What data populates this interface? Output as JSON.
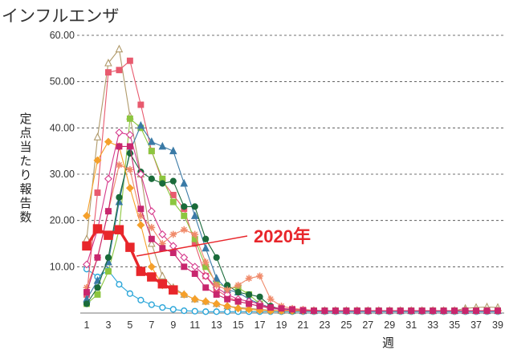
{
  "chart_data": {
    "type": "line",
    "title": "インフルエンザ",
    "ylabel": "定点当たり報告数",
    "xlabel": "週",
    "ylim": [
      0,
      60
    ],
    "xlim": [
      1,
      39
    ],
    "y_ticks": [
      "10.00",
      "20.00",
      "30.00",
      "40.00",
      "50.00",
      "60.00"
    ],
    "x_ticks": [
      1,
      3,
      5,
      7,
      9,
      11,
      13,
      15,
      17,
      19,
      21,
      23,
      25,
      27,
      29,
      31,
      33,
      35,
      37,
      39
    ],
    "grid": "horizontal-dashed",
    "annotation": "2020年",
    "highlight_series": "2020年",
    "series": [
      {
        "name": "2020年",
        "color": "#e8262b",
        "marker": "square",
        "x": [
          1,
          2,
          3,
          4,
          5,
          6,
          7,
          8,
          9
        ],
        "y": [
          14.5,
          18.2,
          16.8,
          18.0,
          14.2,
          9.0,
          7.8,
          6.3,
          5.0
        ]
      },
      {
        "color": "#2ba6d9",
        "marker": "circle-open",
        "x": [
          1,
          2,
          3,
          4,
          5,
          6,
          7,
          8,
          9,
          10,
          11,
          12,
          13,
          14,
          15,
          16,
          17,
          18,
          19,
          20,
          21,
          22,
          23,
          24,
          25,
          26,
          27,
          28,
          29,
          30,
          31,
          32,
          33,
          34,
          35,
          36,
          37,
          38,
          39
        ],
        "y": [
          9.5,
          7.8,
          9.2,
          6.2,
          4.2,
          2.8,
          1.8,
          1.2,
          0.8,
          0.5,
          0.4,
          0.3,
          0.3,
          0.3,
          0.3,
          0.3,
          0.3,
          0.3,
          0.3,
          0.3,
          0.3,
          0.3,
          0.3,
          0.3,
          0.3,
          0.3,
          0.3,
          0.3,
          0.3,
          0.3,
          0.3,
          0.3,
          0.3,
          0.3,
          0.3,
          0.3,
          0.3,
          0.3,
          0.3
        ]
      },
      {
        "color": "#b09a6a",
        "marker": "triangle-open",
        "x": [
          1,
          2,
          3,
          4,
          5,
          6,
          7,
          8,
          9,
          10,
          11,
          12,
          13,
          14,
          15,
          16,
          17,
          18,
          19,
          20,
          21,
          22,
          23,
          24,
          25,
          26,
          27,
          28,
          29,
          30,
          31,
          32,
          33,
          34,
          35,
          36,
          37,
          38,
          39
        ],
        "y": [
          16.0,
          38.0,
          54.0,
          57.0,
          42.5,
          30.0,
          15.0,
          8.0,
          5.5,
          4.0,
          3.0,
          2.5,
          2.0,
          1.5,
          1.2,
          1.0,
          0.8,
          0.6,
          0.5,
          0.5,
          0.5,
          0.5,
          0.5,
          0.5,
          0.5,
          0.5,
          0.5,
          0.5,
          0.5,
          0.5,
          0.5,
          0.5,
          0.5,
          0.5,
          0.5,
          1.0,
          1.2,
          1.3,
          1.2
        ]
      },
      {
        "color": "#e85a6e",
        "marker": "square",
        "x": [
          1,
          2,
          3,
          4,
          5,
          6,
          7,
          8,
          9,
          10,
          11,
          12,
          13,
          14,
          15,
          16,
          17,
          18,
          19,
          20,
          21,
          22,
          23,
          24,
          25,
          26,
          27,
          28,
          29,
          30,
          31,
          32,
          33,
          34,
          35,
          36,
          37,
          38,
          39
        ],
        "y": [
          4.0,
          26.0,
          52.0,
          52.5,
          54.5,
          45.0,
          35.0,
          28.5,
          25.5,
          22.5,
          15.0,
          8.0,
          5.0,
          3.5,
          2.5,
          2.0,
          1.5,
          1.0,
          0.8,
          0.6,
          0.5,
          0.5,
          0.5,
          0.5,
          0.5,
          0.5,
          0.5,
          0.5,
          0.5,
          0.5,
          0.5,
          0.5,
          0.5,
          0.5,
          0.5,
          0.5,
          0.5,
          0.5,
          0.5
        ]
      },
      {
        "color": "#8cc63f",
        "marker": "square",
        "x": [
          1,
          2,
          3,
          4,
          5,
          6,
          7,
          8,
          9,
          10,
          11,
          12,
          13,
          14,
          15,
          16,
          17,
          18,
          19,
          20,
          21,
          22,
          23,
          24,
          25,
          26,
          27,
          28,
          29,
          30,
          31,
          32,
          33,
          34,
          35,
          36,
          37,
          38,
          39
        ],
        "y": [
          2.0,
          4.0,
          9.0,
          18.0,
          42.0,
          40.0,
          35.0,
          29.0,
          24.0,
          21.0,
          16.0,
          10.0,
          6.5,
          5.5,
          5.5,
          4.0,
          2.0,
          1.0,
          0.8,
          0.5,
          0.5,
          0.5,
          0.5,
          0.5,
          0.5,
          0.5,
          0.5,
          0.5,
          0.5,
          0.5,
          0.5,
          0.5,
          0.5,
          0.5,
          0.5,
          0.5,
          0.5,
          0.5,
          0.5
        ]
      },
      {
        "color": "#3a7aa6",
        "marker": "triangle",
        "x": [
          1,
          2,
          3,
          4,
          5,
          6,
          7,
          8,
          9,
          10,
          11,
          12,
          13,
          14,
          15,
          16,
          17,
          18,
          19,
          20,
          21,
          22,
          23,
          24,
          25,
          26,
          27,
          28,
          29,
          30,
          31,
          32,
          33,
          34,
          35,
          36,
          37,
          38,
          39
        ],
        "y": [
          3.0,
          7.0,
          11.0,
          24.0,
          35.0,
          40.5,
          37.0,
          36.0,
          35.0,
          28.0,
          21.0,
          14.0,
          7.5,
          5.0,
          4.5,
          3.0,
          2.0,
          1.2,
          0.8,
          0.6,
          0.5,
          0.5,
          0.5,
          0.5,
          0.5,
          0.5,
          0.5,
          0.5,
          0.5,
          0.5,
          0.5,
          0.5,
          0.5,
          0.5,
          0.5,
          0.5,
          0.5,
          0.5,
          0.5
        ]
      },
      {
        "color": "#1a6b3a",
        "marker": "circle",
        "x": [
          1,
          2,
          3,
          4,
          5,
          6,
          7,
          8,
          9,
          10,
          11,
          12,
          13,
          14,
          15,
          16,
          17,
          18,
          19,
          20,
          21,
          22,
          23,
          24,
          25,
          26,
          27,
          28,
          29,
          30,
          31,
          32,
          33,
          34,
          35,
          36,
          37,
          38,
          39
        ],
        "y": [
          2.0,
          5.5,
          12.0,
          25.0,
          34.5,
          30.5,
          29.0,
          28.0,
          28.5,
          23.0,
          23.0,
          16.0,
          12.0,
          6.0,
          4.5,
          4.0,
          3.5,
          1.5,
          0.8,
          0.5,
          0.5,
          0.5,
          0.5,
          0.5,
          0.5,
          0.5,
          0.5,
          0.5,
          0.5,
          0.5,
          0.5,
          0.5,
          0.5,
          0.5,
          0.5,
          0.5,
          0.5,
          0.5,
          0.5
        ]
      },
      {
        "color": "#d63a8c",
        "marker": "diamond-open",
        "x": [
          1,
          2,
          3,
          4,
          5,
          6,
          7,
          8,
          9,
          10,
          11,
          12,
          13,
          14,
          15,
          16,
          17,
          18,
          19,
          20,
          21,
          22,
          23,
          24,
          25,
          26,
          27,
          28,
          29,
          30,
          31,
          32,
          33,
          34,
          35,
          36,
          37,
          38,
          39
        ],
        "y": [
          10.5,
          18.0,
          29.0,
          39.0,
          38.5,
          30.0,
          22.0,
          17.0,
          14.5,
          12.0,
          10.0,
          8.0,
          5.5,
          4.0,
          3.0,
          2.5,
          2.0,
          1.0,
          0.8,
          0.5,
          0.5,
          0.5,
          0.5,
          0.5,
          0.5,
          0.5,
          0.5,
          0.5,
          0.5,
          0.5,
          0.5,
          0.5,
          0.5,
          0.5,
          0.5,
          0.5,
          0.5,
          0.5,
          0.5
        ]
      },
      {
        "color": "#f5a02a",
        "marker": "diamond",
        "x": [
          1,
          2,
          3,
          4,
          5,
          6,
          7,
          8,
          9,
          10,
          11,
          12,
          13,
          14,
          15,
          16,
          17,
          18,
          19,
          20,
          21,
          22,
          23,
          24,
          25,
          26,
          27,
          28,
          29,
          30,
          31,
          32,
          33,
          34,
          35,
          36,
          37,
          38,
          39
        ],
        "y": [
          21.0,
          33.0,
          37.0,
          36.0,
          27.0,
          19.0,
          10.0,
          6.0,
          5.0,
          4.0,
          3.0,
          2.5,
          2.0,
          1.5,
          1.0,
          0.8,
          0.6,
          0.5,
          0.5,
          0.5,
          0.5,
          0.5,
          0.5,
          0.5,
          0.5,
          0.5,
          0.5,
          0.5,
          0.5,
          0.5,
          0.5,
          0.5,
          0.5,
          0.5,
          0.5,
          0.5,
          0.5,
          0.5,
          0.5
        ]
      },
      {
        "color": "#f08a6a",
        "marker": "asterisk",
        "x": [
          1,
          2,
          3,
          4,
          5,
          6,
          7,
          8,
          9,
          10,
          11,
          12,
          13,
          14,
          15,
          16,
          17,
          18,
          19,
          20,
          21,
          22,
          23,
          24,
          25,
          26,
          27,
          28,
          29,
          30,
          31,
          32,
          33,
          34,
          35,
          36,
          37,
          38,
          39
        ],
        "y": [
          5.5,
          12.0,
          22.0,
          32.0,
          31.0,
          21.0,
          18.5,
          15.0,
          17.0,
          18.0,
          17.0,
          11.0,
          6.0,
          5.0,
          6.0,
          7.5,
          8.0,
          3.0,
          1.5,
          1.0,
          0.8,
          0.6,
          0.5,
          0.5,
          0.5,
          0.5,
          0.5,
          0.5,
          0.5,
          0.5,
          0.5,
          0.5,
          0.5,
          0.5,
          0.5,
          0.5,
          0.5,
          0.5,
          0.5
        ]
      },
      {
        "color": "#c8266e",
        "marker": "square",
        "x": [
          1,
          2,
          3,
          4,
          5,
          6,
          7,
          8,
          9,
          10,
          11,
          12,
          13,
          14,
          15,
          16,
          17,
          18,
          19,
          20,
          21,
          22,
          23,
          24,
          25,
          26,
          27,
          28,
          29,
          30,
          31,
          32,
          33,
          34,
          35,
          36,
          37,
          38,
          39
        ],
        "y": [
          4.5,
          12.0,
          22.0,
          36.0,
          36.0,
          22.5,
          16.0,
          14.0,
          13.0,
          10.0,
          8.5,
          5.5,
          4.0,
          3.0,
          2.5,
          2.0,
          1.5,
          1.2,
          1.0,
          0.8,
          0.6,
          0.5,
          0.5,
          0.5,
          0.5,
          0.5,
          0.5,
          0.5,
          0.5,
          0.5,
          0.5,
          0.5,
          0.5,
          0.5,
          0.5,
          0.5,
          0.5,
          0.5,
          0.5
        ]
      }
    ]
  }
}
